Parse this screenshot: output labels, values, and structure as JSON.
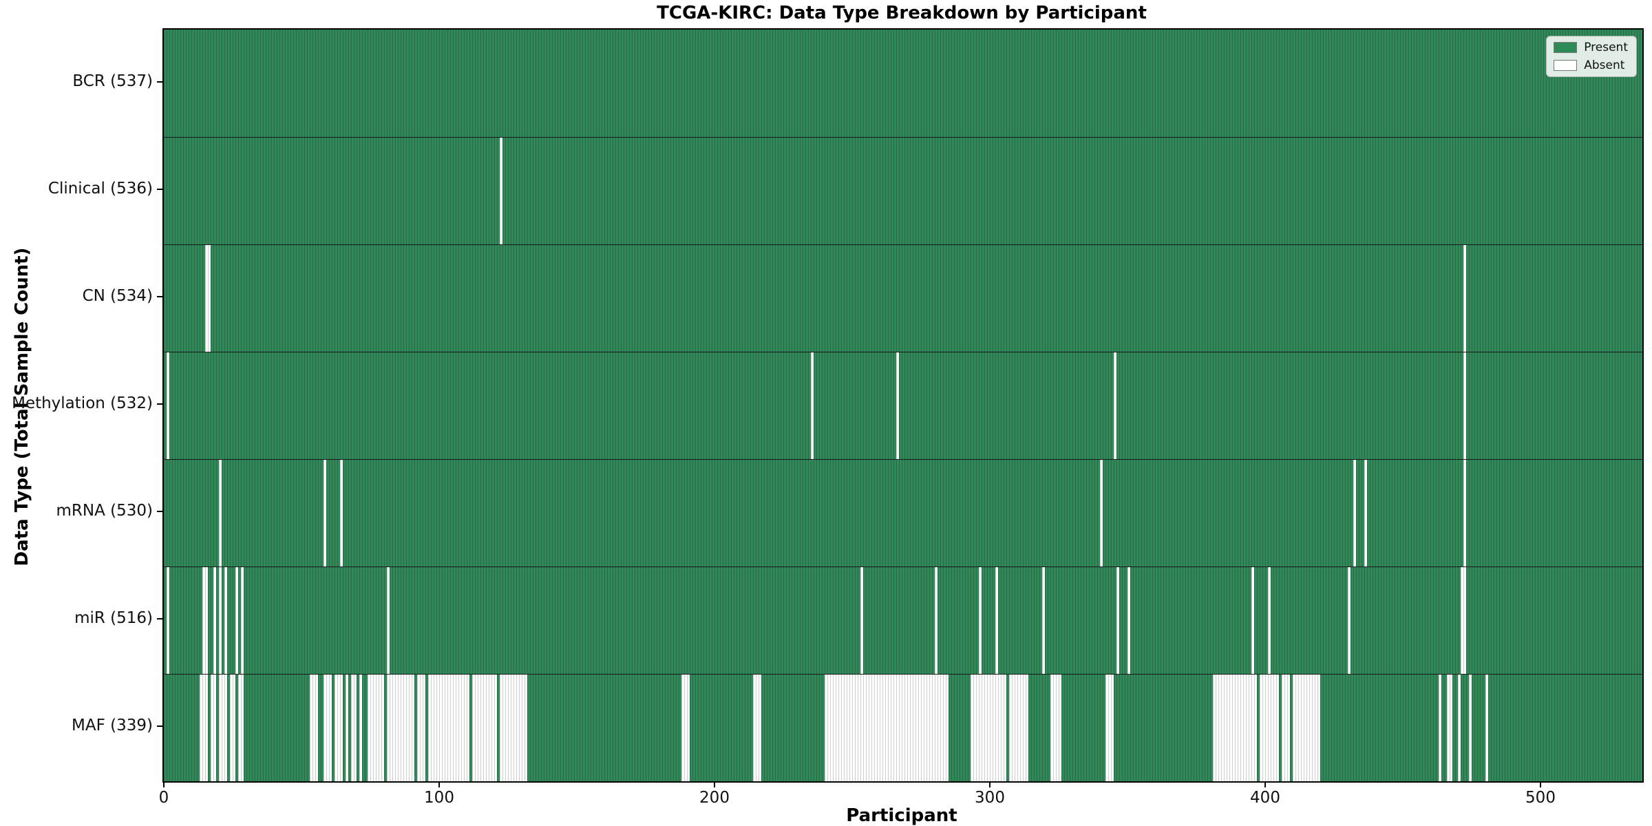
{
  "title": "TCGA-KIRC: Data Type Breakdown by Participant",
  "x_axis": {
    "label": "Participant",
    "ticks": [
      0,
      100,
      200,
      300,
      400,
      500
    ],
    "min": 0,
    "max": 537
  },
  "y_axis": {
    "label": "Data Type (Total Sample Count)"
  },
  "legend": {
    "items": [
      {
        "label": "Present",
        "color": "#2e8b57"
      },
      {
        "label": "Absent",
        "color": "#ffffff"
      }
    ]
  },
  "colors": {
    "present_fill": "#2e8b57",
    "present_edge": "#246c45",
    "absent_fill": "#ffffff",
    "absent_edge": "#cccccc",
    "row_separator": "#1a1a1a",
    "plot_border": "#000000",
    "background": "#ffffff"
  },
  "chart_data": {
    "type": "heatmap",
    "title": "TCGA-KIRC: Data Type Breakdown by Participant",
    "xlabel": "Participant",
    "ylabel": "Data Type (Total Sample Count)",
    "legend_position": "upper right",
    "x_range": [
      0,
      537
    ],
    "total_participants": 537,
    "cell_states": [
      "Present",
      "Absent"
    ],
    "rows": [
      {
        "label": "BCR (537)",
        "data_type": "BCR",
        "total_sample_count": 537,
        "absent_participant_ranges": []
      },
      {
        "label": "Clinical (536)",
        "data_type": "Clinical",
        "total_sample_count": 536,
        "absent_participant_ranges": [
          [
            122,
            122
          ]
        ]
      },
      {
        "label": "CN (534)",
        "data_type": "CN",
        "total_sample_count": 534,
        "absent_participant_ranges": [
          [
            15,
            16
          ],
          [
            472,
            472
          ]
        ]
      },
      {
        "label": "Methylation (532)",
        "data_type": "Methylation",
        "total_sample_count": 532,
        "absent_participant_ranges": [
          [
            1,
            1
          ],
          [
            235,
            235
          ],
          [
            266,
            266
          ],
          [
            345,
            345
          ],
          [
            472,
            472
          ]
        ]
      },
      {
        "label": "mRNA (530)",
        "data_type": "mRNA",
        "total_sample_count": 530,
        "absent_participant_ranges": [
          [
            20,
            20
          ],
          [
            58,
            58
          ],
          [
            64,
            64
          ],
          [
            340,
            340
          ],
          [
            432,
            432
          ],
          [
            436,
            436
          ],
          [
            472,
            472
          ]
        ]
      },
      {
        "label": "miR (516)",
        "data_type": "miR",
        "total_sample_count": 516,
        "absent_participant_ranges": [
          [
            1,
            1
          ],
          [
            14,
            15
          ],
          [
            18,
            18
          ],
          [
            20,
            20
          ],
          [
            22,
            22
          ],
          [
            26,
            26
          ],
          [
            28,
            28
          ],
          [
            81,
            81
          ],
          [
            253,
            253
          ],
          [
            280,
            280
          ],
          [
            296,
            296
          ],
          [
            302,
            302
          ],
          [
            319,
            319
          ],
          [
            346,
            346
          ],
          [
            350,
            350
          ],
          [
            395,
            395
          ],
          [
            401,
            401
          ],
          [
            430,
            430
          ],
          [
            471,
            472
          ]
        ]
      },
      {
        "label": "MAF (339)",
        "data_type": "MAF",
        "total_sample_count": 339,
        "absent_participant_ranges": [
          [
            13,
            15
          ],
          [
            17,
            18
          ],
          [
            20,
            22
          ],
          [
            24,
            25
          ],
          [
            27,
            28
          ],
          [
            53,
            55
          ],
          [
            58,
            60
          ],
          [
            62,
            64
          ],
          [
            66,
            66
          ],
          [
            68,
            69
          ],
          [
            71,
            71
          ],
          [
            74,
            79
          ],
          [
            81,
            90
          ],
          [
            92,
            94
          ],
          [
            96,
            110
          ],
          [
            112,
            120
          ],
          [
            122,
            131
          ],
          [
            188,
            190
          ],
          [
            214,
            216
          ],
          [
            240,
            284
          ],
          [
            293,
            305
          ],
          [
            307,
            313
          ],
          [
            322,
            325
          ],
          [
            342,
            344
          ],
          [
            381,
            396
          ],
          [
            398,
            404
          ],
          [
            406,
            408
          ],
          [
            410,
            419
          ],
          [
            463,
            463
          ],
          [
            466,
            467
          ],
          [
            470,
            470
          ],
          [
            474,
            474
          ],
          [
            480,
            480
          ]
        ]
      }
    ]
  }
}
